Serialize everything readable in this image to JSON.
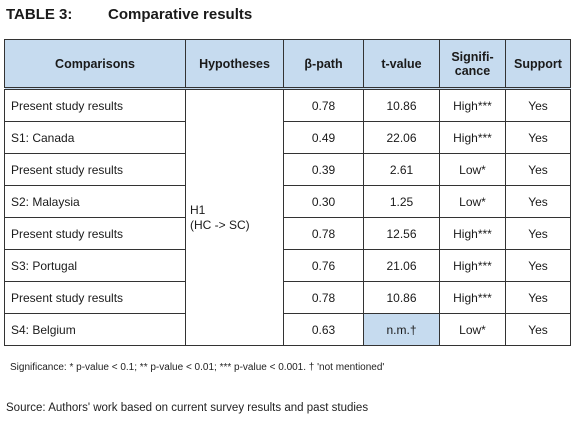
{
  "title": {
    "label": "TABLE 3:",
    "text": "Comparative results"
  },
  "table": {
    "headers": {
      "comparisons": "Comparisons",
      "hypotheses": "Hypotheses",
      "beta": "β-path",
      "tvalue": "t-value",
      "significance_line1": "Signifi-",
      "significance_line2": "cance",
      "support": "Support"
    },
    "hypothesis": {
      "line1": "H1",
      "line2": "(HC -> SC)"
    },
    "rows": [
      {
        "comparison": "Present study results",
        "beta": "0.78",
        "t": "10.86",
        "significance": "High***",
        "support": "Yes"
      },
      {
        "comparison": "S1: Canada",
        "beta": "0.49",
        "t": "22.06",
        "significance": "High***",
        "support": "Yes"
      },
      {
        "comparison": "Present study results",
        "beta": "0.39",
        "t": "2.61",
        "significance": "Low*",
        "support": "Yes"
      },
      {
        "comparison": "S2: Malaysia",
        "beta": "0.30",
        "t": "1.25",
        "significance": "Low*",
        "support": "Yes"
      },
      {
        "comparison": "Present study results",
        "beta": "0.78",
        "t": "12.56",
        "significance": "High***",
        "support": "Yes"
      },
      {
        "comparison": "S3: Portugal",
        "beta": "0.76",
        "t": "21.06",
        "significance": "High***",
        "support": "Yes"
      },
      {
        "comparison": "Present study results",
        "beta": "0.78",
        "t": "10.86",
        "significance": "High***",
        "support": "Yes"
      },
      {
        "comparison": "S4: Belgium",
        "beta": "0.63",
        "t": "n.m.†",
        "significance": "Low*",
        "support": "Yes"
      }
    ],
    "header_color": "#c6dbef",
    "highlight_color": "#c6dbef"
  },
  "note": "Significance: * p-value < 0.1; ** p-value < 0.01; *** p-value < 0.001. † 'not mentioned'",
  "source": "Source: Authors' work based on current survey results and past studies"
}
